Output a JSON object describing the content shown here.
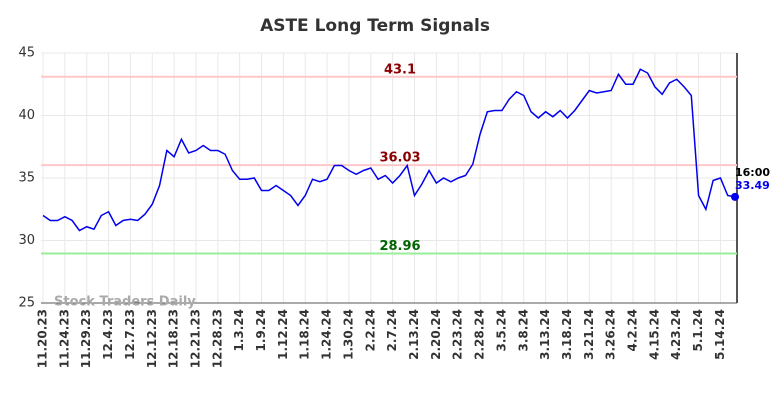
{
  "chart_data": {
    "type": "line",
    "title": "ASTE Long Term Signals",
    "watermark": "Stock Traders Daily",
    "categories": [
      "11.20.23",
      null,
      null,
      "11.24.23",
      null,
      null,
      "11.29.23",
      null,
      null,
      "12.4.23",
      null,
      null,
      "12.7.23",
      null,
      null,
      "12.12.23",
      null,
      null,
      "12.18.23",
      null,
      null,
      "12.21.23",
      null,
      null,
      "12.28.23",
      null,
      null,
      "1.3.24",
      null,
      null,
      "1.9.24",
      null,
      null,
      "1.12.24",
      null,
      null,
      "1.18.24",
      null,
      null,
      "1.24.24",
      null,
      null,
      "1.30.24",
      null,
      null,
      "2.2.24",
      null,
      null,
      "2.7.24",
      null,
      null,
      "2.13.24",
      null,
      null,
      "2.20.24",
      null,
      null,
      "2.23.24",
      null,
      null,
      "2.28.24",
      null,
      null,
      "3.5.24",
      null,
      null,
      "3.8.24",
      null,
      null,
      "3.13.24",
      null,
      null,
      "3.18.24",
      null,
      null,
      "3.21.24",
      null,
      null,
      "3.26.24",
      null,
      null,
      "4.2.24",
      null,
      null,
      "4.15.24",
      null,
      null,
      "4.23.24",
      null,
      null,
      "5.1.24",
      null,
      null,
      "5.14.24",
      null,
      null
    ],
    "values": [
      32.0,
      31.6,
      31.6,
      31.9,
      31.6,
      30.8,
      31.1,
      30.9,
      32.0,
      32.3,
      31.2,
      31.6,
      31.7,
      31.6,
      32.1,
      32.9,
      34.4,
      37.2,
      36.7,
      38.1,
      37.0,
      37.2,
      37.6,
      37.2,
      37.2,
      36.9,
      35.6,
      34.9,
      34.9,
      35.0,
      34.0,
      34.0,
      34.4,
      34.0,
      33.6,
      32.8,
      33.6,
      34.9,
      34.7,
      34.9,
      36.0,
      36.0,
      35.6,
      35.3,
      35.6,
      35.8,
      34.9,
      35.2,
      34.6,
      35.2,
      36.0,
      33.6,
      34.5,
      35.6,
      34.6,
      35.0,
      34.7,
      35.0,
      35.2,
      36.1,
      38.5,
      40.3,
      40.4,
      40.4,
      41.3,
      41.9,
      41.6,
      40.3,
      39.8,
      40.3,
      39.9,
      40.4,
      39.8,
      40.4,
      41.2,
      42.0,
      41.8,
      41.9,
      42.0,
      43.3,
      42.5,
      42.5,
      43.7,
      43.4,
      42.3,
      41.7,
      42.6,
      42.9,
      42.3,
      41.6,
      33.6,
      32.5,
      34.8,
      35.0,
      33.6,
      33.49
    ],
    "color": "#0000ee",
    "last_time": "16:00",
    "reference_lines": [
      {
        "value": 43.1,
        "color": "#ffc8c8",
        "label_color": "#8b0000"
      },
      {
        "value": 36.03,
        "color": "#ffc8c8",
        "label_color": "#8b0000"
      },
      {
        "value": 28.96,
        "color": "#99ee99",
        "label_color": "#006400"
      }
    ],
    "ylim": [
      25,
      45
    ],
    "yticks": [
      25,
      30,
      35,
      40,
      45
    ],
    "grid": true
  }
}
